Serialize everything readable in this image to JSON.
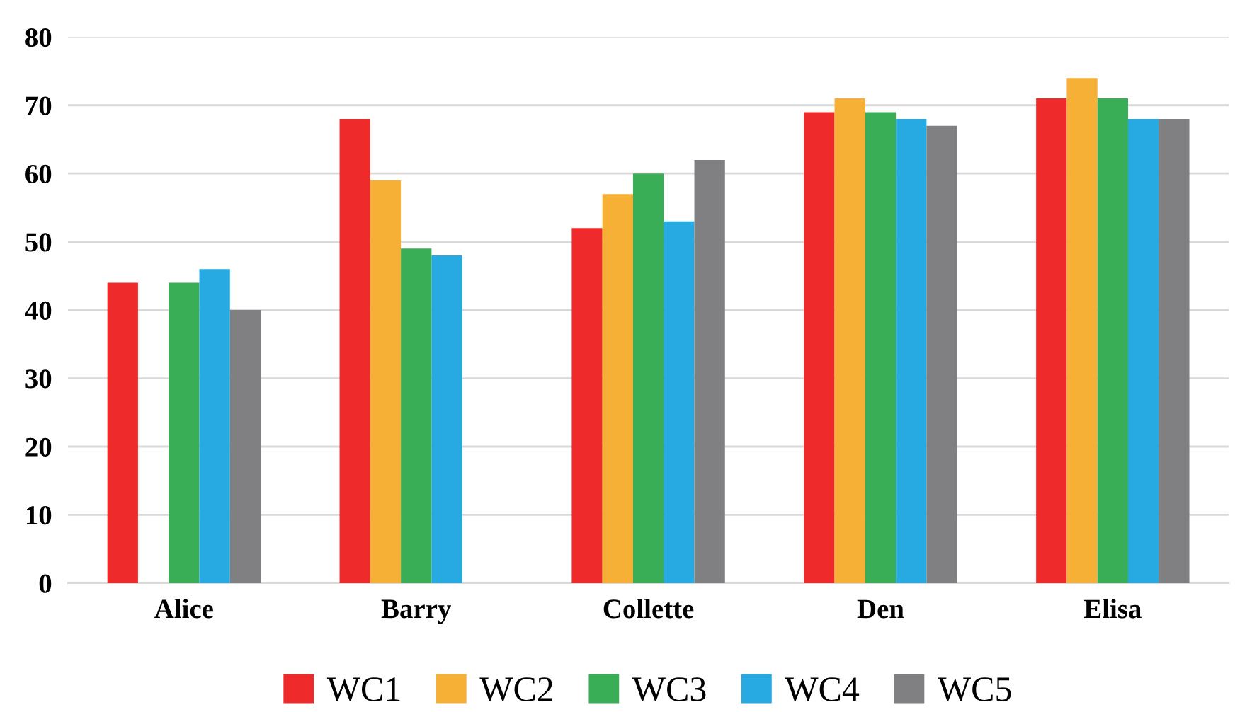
{
  "chart_data": {
    "type": "bar",
    "categories": [
      "Alice",
      "Barry",
      "Collette",
      "Den",
      "Elisa"
    ],
    "series": [
      {
        "name": "WC1",
        "color": "#ee2a2a",
        "values": [
          44,
          68,
          52,
          69,
          71
        ]
      },
      {
        "name": "WC2",
        "color": "#f5b035",
        "values": [
          null,
          59,
          57,
          71,
          74
        ]
      },
      {
        "name": "WC3",
        "color": "#3aae57",
        "values": [
          44,
          49,
          60,
          69,
          71
        ]
      },
      {
        "name": "WC4",
        "color": "#27a9e1",
        "values": [
          46,
          48,
          53,
          68,
          68
        ]
      },
      {
        "name": "WC5",
        "color": "#808083",
        "values": [
          40,
          null,
          62,
          67,
          68
        ]
      }
    ],
    "ylim": [
      0,
      80
    ],
    "yticks": [
      0,
      10,
      20,
      30,
      40,
      50,
      60,
      70,
      80
    ],
    "grid": "y",
    "legend": "bottom"
  }
}
